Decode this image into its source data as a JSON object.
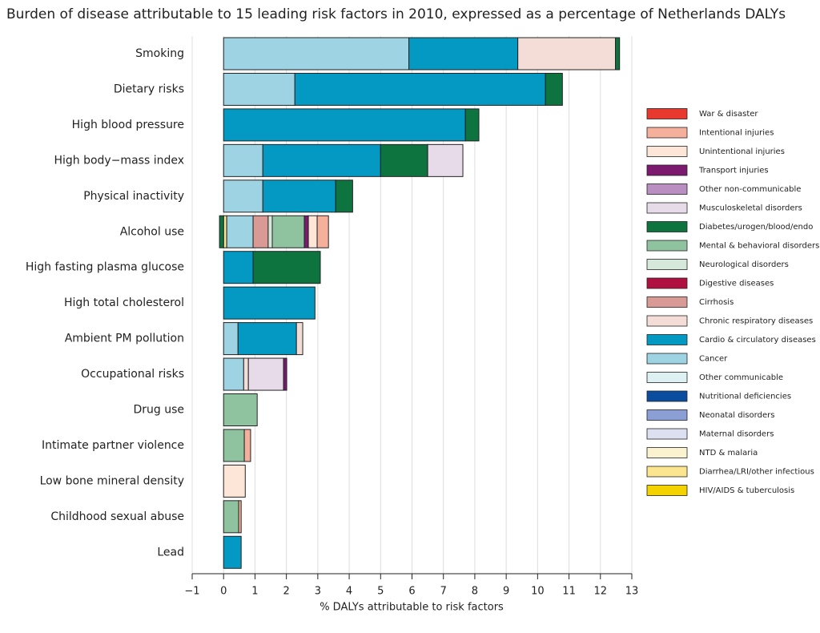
{
  "chart_data": {
    "type": "stacked-barh",
    "title": "Burden of disease attributable to 15 leading risk factors in 2010, expressed as a percentage of Netherlands DALYs",
    "x_label": "% DALYs attributable to risk factors",
    "categories": [
      "Smoking",
      "Dietary risks",
      "High blood pressure",
      "High body−mass index",
      "Physical inactivity",
      "Alcohol use",
      "High fasting plasma glucose",
      "High total cholesterol",
      "Ambient PM pollution",
      "Occupational risks",
      "Drug use",
      "Intimate partner violence",
      "Low bone mineral density",
      "Childhood sexual abuse",
      "Lead"
    ],
    "xlim": [
      -1,
      13
    ],
    "xticks": [
      {
        "value": -1,
        "label": "−1"
      },
      0,
      1,
      2,
      3,
      4,
      5,
      6,
      7,
      8,
      9,
      10,
      11,
      12,
      13
    ],
    "grid": true,
    "series": [
      {
        "name": "War & disaster",
        "color": "#e8392e",
        "values": [
          0,
          0,
          0,
          0,
          0,
          0,
          0,
          0,
          0,
          0,
          0,
          0,
          0,
          0,
          0
        ]
      },
      {
        "name": "Intentional injuries",
        "color": "#f4b09a",
        "values": [
          0,
          0,
          0,
          0,
          0,
          0.36,
          0,
          0,
          0,
          0,
          0,
          0.2,
          0,
          0.08,
          0
        ]
      },
      {
        "name": "Unintentional injuries",
        "color": "#fde5d8",
        "values": [
          0,
          0,
          0,
          0,
          0,
          0.28,
          0,
          0,
          0,
          0,
          0,
          0,
          0.69,
          0,
          0
        ]
      },
      {
        "name": "Transport injuries",
        "color": "#7b1a6f",
        "values": [
          0,
          0,
          0,
          0,
          0,
          0.13,
          0,
          0,
          0,
          0.1,
          0,
          0,
          0,
          0,
          0
        ]
      },
      {
        "name": "Other non-communicable",
        "color": "#b88fc0",
        "values": [
          0,
          0,
          0,
          0,
          0,
          0,
          0,
          0,
          0,
          0,
          0,
          0,
          0,
          0,
          0
        ]
      },
      {
        "name": "Musculoskeletal disorders",
        "color": "#e8dbe9",
        "values": [
          0,
          0,
          0,
          1.12,
          0,
          0,
          0,
          0,
          0,
          1.12,
          0,
          0,
          0,
          0,
          0
        ]
      },
      {
        "name": "Diabetes/urogen/blood/endo",
        "color": "#0d7440",
        "values": [
          0.13,
          0.54,
          0.43,
          1.5,
          0.54,
          -0.13,
          2.14,
          0,
          0,
          0,
          0,
          0,
          0,
          0,
          0
        ]
      },
      {
        "name": "Mental & behavioral disorders",
        "color": "#8fc3a0",
        "values": [
          0,
          0,
          0,
          0,
          0,
          1.02,
          0,
          0,
          0,
          0,
          1.07,
          0.66,
          0,
          0.48,
          0
        ]
      },
      {
        "name": "Neurological disorders",
        "color": "#d5e8da",
        "values": [
          0,
          0,
          0,
          0,
          0,
          0.13,
          0,
          0,
          0,
          0,
          0,
          0,
          0,
          0,
          0
        ]
      },
      {
        "name": "Digestive diseases",
        "color": "#b0103f",
        "values": [
          0,
          0,
          0,
          0,
          0,
          0,
          0,
          0,
          0,
          0,
          0,
          0,
          0,
          0,
          0
        ]
      },
      {
        "name": "Cirrhosis",
        "color": "#d99a95",
        "values": [
          0,
          0,
          0,
          0,
          0,
          0.48,
          0,
          0,
          0,
          0,
          0,
          0,
          0,
          0,
          0
        ]
      },
      {
        "name": "Chronic respiratory diseases",
        "color": "#f5ddd7",
        "values": [
          3.11,
          0,
          0,
          0,
          0,
          0,
          0,
          0,
          0.2,
          0.15,
          0,
          0,
          0,
          0,
          0
        ]
      },
      {
        "name": "Cardio & circulatory diseases",
        "color": "#0399c2",
        "values": [
          3.47,
          7.98,
          7.7,
          3.75,
          2.32,
          0,
          0.94,
          2.91,
          1.86,
          0,
          0,
          0,
          0,
          0,
          0.56
        ]
      },
      {
        "name": "Cancer",
        "color": "#9dd3e2",
        "values": [
          5.9,
          2.27,
          0,
          1.25,
          1.25,
          0.84,
          0,
          0,
          0.46,
          0.64,
          0,
          0,
          0,
          0,
          0
        ]
      },
      {
        "name": "Other communicable",
        "color": "#ddf0f2",
        "values": [
          0,
          0,
          0,
          0,
          0,
          0,
          0,
          0,
          0,
          0,
          0,
          0,
          0,
          0,
          0
        ]
      },
      {
        "name": "Nutritional deficiencies",
        "color": "#0a4d9e",
        "values": [
          0,
          0,
          0,
          0,
          0,
          0,
          0,
          0,
          0,
          0,
          0,
          0,
          0,
          0,
          0
        ]
      },
      {
        "name": "Neonatal disorders",
        "color": "#8b9fd5",
        "values": [
          0,
          0,
          0,
          0,
          0,
          0,
          0,
          0,
          0,
          0,
          0,
          0,
          0,
          0,
          0
        ]
      },
      {
        "name": "Maternal disorders",
        "color": "#dde0f0",
        "values": [
          0,
          0,
          0,
          0,
          0,
          0,
          0,
          0,
          0,
          0,
          0,
          0,
          0,
          0,
          0
        ]
      },
      {
        "name": "NTD & malaria",
        "color": "#fbf3cf",
        "values": [
          0,
          0,
          0,
          0,
          0,
          0,
          0,
          0,
          0,
          0,
          0,
          0,
          0,
          0,
          0
        ]
      },
      {
        "name": "Diarrhea/LRI/other infectious",
        "color": "#fbe68f",
        "values": [
          0,
          0,
          0,
          0,
          0,
          0.1,
          0,
          0,
          0,
          0,
          0,
          0,
          0,
          0,
          0
        ]
      },
      {
        "name": "HIV/AIDS & tuberculosis",
        "color": "#f4d200",
        "values": [
          0,
          0,
          0,
          0,
          0,
          0,
          0,
          0,
          0,
          0,
          0,
          0,
          0,
          0,
          0
        ]
      }
    ]
  }
}
